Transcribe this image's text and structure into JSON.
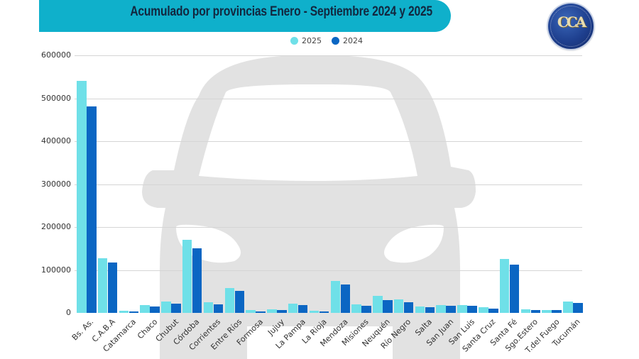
{
  "header": {
    "title": "Acumulado por provincias Enero  -  Septiembre 2024 y 2025",
    "logo_text": "CCA",
    "logo_icon": "cca-logo-icon"
  },
  "colors": {
    "banner": "#0fb0cb",
    "series_2025": "#6fe0e8",
    "series_2024": "#0b66c3",
    "car_silhouette": "#e2e2e2"
  },
  "chart_data": {
    "type": "bar",
    "title": "Acumulado por provincias Enero  -  Septiembre 2024 y 2025",
    "xlabel": "",
    "ylabel": "",
    "ylim": [
      0,
      600000
    ],
    "yticks": [
      0,
      100000,
      200000,
      300000,
      400000,
      500000,
      600000
    ],
    "grid": true,
    "legend_position": "top-center",
    "categories": [
      "Bs. As.",
      "C.A.B.A",
      "Catamarca",
      "Chaco",
      "Chubut",
      "Córdoba",
      "Corrientes",
      "Entre Ríos",
      "Formosa",
      "Jujuy",
      "La Pampa",
      "La Rioja",
      "Mendoza",
      "Misiones",
      "Neuquén",
      "Río Negro",
      "Salta",
      "San Juan",
      "San Luis",
      "Santa Cruz",
      "Santa Fé",
      "Sgo.Estero",
      "T.del Fuego",
      "Tucumán"
    ],
    "series": [
      {
        "name": "2025",
        "color": "#6fe0e8",
        "values": [
          540000,
          127000,
          4500,
          19000,
          26000,
          171000,
          25500,
          57500,
          6300,
          8600,
          21000,
          5300,
          74500,
          20000,
          39500,
          31000,
          15700,
          19000,
          18500,
          12700,
          125000,
          8300,
          7200,
          27000
        ]
      },
      {
        "name": "2024",
        "color": "#0b66c3",
        "values": [
          481000,
          118000,
          3000,
          15500,
          21000,
          150000,
          20000,
          51500,
          4100,
          7000,
          19000,
          3600,
          66500,
          17000,
          30000,
          25000,
          12900,
          16200,
          16000,
          9400,
          112500,
          6600,
          6600,
          22600
        ]
      }
    ]
  },
  "legend": [
    {
      "label": "2025",
      "color": "#6fe0e8"
    },
    {
      "label": "2024",
      "color": "#0b66c3"
    }
  ]
}
